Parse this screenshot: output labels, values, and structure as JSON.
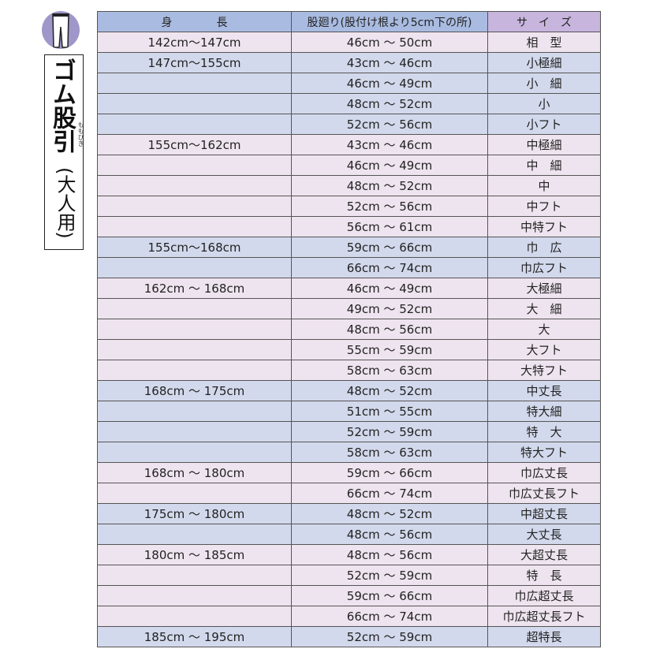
{
  "title": {
    "main": "ゴム股引",
    "ruby": "ももひき",
    "sub": "(大人用)",
    "icon": "pants-icon"
  },
  "colors": {
    "pink_row": "#eee4ef",
    "blue_row": "#d3d9ec",
    "header_blue": "#a9bbe0",
    "header_purple": "#c7b5de",
    "icon_circle": "#9f97c9"
  },
  "headers": [
    "身　　　　長",
    "股廻り(股付け根より5cm下の所)",
    "サ　イ　ズ"
  ],
  "rows": [
    {
      "height": "142cm～147cm",
      "crotch": "46cm ～ 50cm",
      "size": "相　型",
      "shade": "p"
    },
    {
      "height": "147cm～155cm",
      "crotch": "43cm ～ 46cm",
      "size": "小極細",
      "shade": "b"
    },
    {
      "height": "",
      "crotch": "46cm ～ 49cm",
      "size": "小　細",
      "shade": "b"
    },
    {
      "height": "",
      "crotch": "48cm ～ 52cm",
      "size": "小",
      "shade": "b"
    },
    {
      "height": "",
      "crotch": "52cm ～ 56cm",
      "size": "小フト",
      "shade": "b"
    },
    {
      "height": "155cm～162cm",
      "crotch": "43cm ～ 46cm",
      "size": "中極細",
      "shade": "p"
    },
    {
      "height": "",
      "crotch": "46cm ～ 49cm",
      "size": "中　細",
      "shade": "p"
    },
    {
      "height": "",
      "crotch": "48cm ～ 52cm",
      "size": "中",
      "shade": "p"
    },
    {
      "height": "",
      "crotch": "52cm ～ 56cm",
      "size": "中フト",
      "shade": "p"
    },
    {
      "height": "",
      "crotch": "56cm ～ 61cm",
      "size": "中特フト",
      "shade": "p"
    },
    {
      "height": "155cm～168cm",
      "crotch": "59cm ～ 66cm",
      "size": "巾　広",
      "shade": "b"
    },
    {
      "height": "",
      "crotch": "66cm ～ 74cm",
      "size": "巾広フト",
      "shade": "b"
    },
    {
      "height": "162cm ～ 168cm",
      "crotch": "46cm ～ 49cm",
      "size": "大極細",
      "shade": "p"
    },
    {
      "height": "",
      "crotch": "49cm ～ 52cm",
      "size": "大　細",
      "shade": "p"
    },
    {
      "height": "",
      "crotch": "48cm ～ 56cm",
      "size": "大",
      "shade": "p"
    },
    {
      "height": "",
      "crotch": "55cm ～ 59cm",
      "size": "大フト",
      "shade": "p"
    },
    {
      "height": "",
      "crotch": "58cm ～ 63cm",
      "size": "大特フト",
      "shade": "p"
    },
    {
      "height": "168cm ～ 175cm",
      "crotch": "48cm ～ 52cm",
      "size": "中丈長",
      "shade": "b"
    },
    {
      "height": "",
      "crotch": "51cm ～ 55cm",
      "size": "特大細",
      "shade": "b"
    },
    {
      "height": "",
      "crotch": "52cm ～ 59cm",
      "size": "特　大",
      "shade": "b"
    },
    {
      "height": "",
      "crotch": "58cm ～ 63cm",
      "size": "特大フト",
      "shade": "b"
    },
    {
      "height": "168cm ～ 180cm",
      "crotch": "59cm ～ 66cm",
      "size": "巾広丈長",
      "shade": "p"
    },
    {
      "height": "",
      "crotch": "66cm ～ 74cm",
      "size": "巾広丈長フト",
      "shade": "p"
    },
    {
      "height": "175cm ～ 180cm",
      "crotch": "48cm ～ 52cm",
      "size": "中超丈長",
      "shade": "b"
    },
    {
      "height": "",
      "crotch": "48cm ～ 56cm",
      "size": "大丈長",
      "shade": "b"
    },
    {
      "height": "180cm ～ 185cm",
      "crotch": "48cm ～ 56cm",
      "size": "大超丈長",
      "shade": "p"
    },
    {
      "height": "",
      "crotch": "52cm ～ 59cm",
      "size": "特　長",
      "shade": "p"
    },
    {
      "height": "",
      "crotch": "59cm ～ 66cm",
      "size": "巾広超丈長",
      "shade": "p"
    },
    {
      "height": "",
      "crotch": "66cm ～ 74cm",
      "size": "巾広超丈長フト",
      "shade": "p"
    },
    {
      "height": "185cm ～ 195cm",
      "crotch": "52cm ～ 59cm",
      "size": "超特長",
      "shade": "b"
    }
  ]
}
